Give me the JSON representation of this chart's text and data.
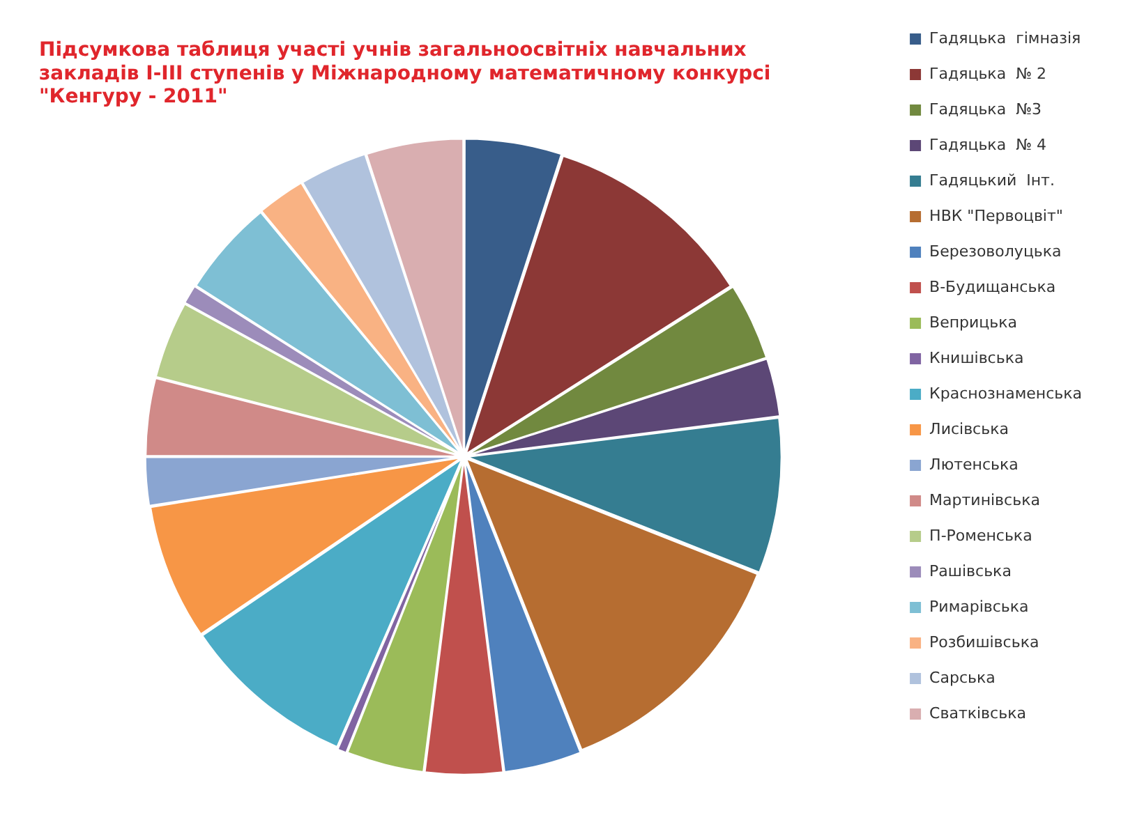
{
  "chart_data": {
    "type": "pie",
    "title": "Підсумкова таблиця участі учнів загальноосвітніх навчальних закладів І-ІІІ ступенів у Міжнародному математичному конкурсі \"Кенгуру - 2011\"",
    "categories": [
      "Гадяцька  гімназія",
      "Гадяцька  № 2",
      "Гадяцька  №3",
      "Гадяцька  № 4",
      "Гадяцький  Інт.",
      "НВК \"Первоцвіт\"",
      "Березоволуцька",
      "В-Будищанська",
      "Веприцька",
      "Книшівська",
      "Краснознаменська",
      "Лисівська",
      "Лютенська",
      "Мартинівська",
      "П-Роменська",
      "Рашівська",
      "Римарівська",
      "Розбишівська",
      "Сарська",
      "Сватківська"
    ],
    "values": [
      5,
      11,
      4,
      3,
      8,
      13,
      4,
      4,
      4,
      0.5,
      9,
      7,
      2.5,
      4,
      4,
      1,
      5,
      2.5,
      3.5,
      5
    ],
    "colors": [
      "#385d8a",
      "#8c3836",
      "#71893f",
      "#5c4776",
      "#357d91",
      "#b66d31",
      "#4f81bd",
      "#c0504d",
      "#9bbb59",
      "#8064a2",
      "#4bacc6",
      "#f79646",
      "#8aa5d1",
      "#d08a88",
      "#b6cc8a",
      "#9c8cba",
      "#7ebfd4",
      "#f9b283",
      "#b0c2dd",
      "#d9aeb0"
    ],
    "legend": "right"
  }
}
